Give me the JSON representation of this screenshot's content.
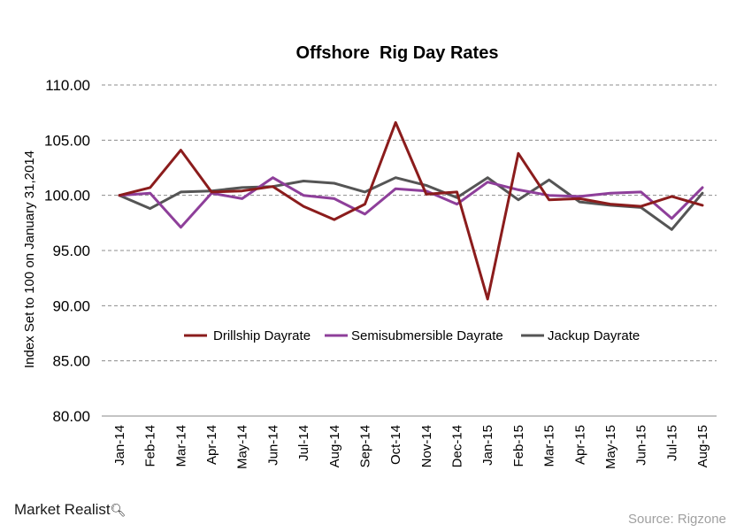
{
  "brand": {
    "name": "Market Realist"
  },
  "source": {
    "text": "Source: Rigzone"
  },
  "chart_data": {
    "type": "line",
    "title": "Offshore  Rig Day Rates",
    "xlabel": "",
    "ylabel": "Index Set to 100 on January 31,2014",
    "ylim": [
      80,
      110
    ],
    "yticks": [
      "80.00",
      "85.00",
      "90.00",
      "95.00",
      "100.00",
      "105.00",
      "110.00"
    ],
    "grid": "horizontal dashed",
    "legend": "center",
    "categories": [
      "Jan-14",
      "Feb-14",
      "Mar-14",
      "Apr-14",
      "May-14",
      "Jun-14",
      "Jul-14",
      "Aug-14",
      "Sep-14",
      "Oct-14",
      "Nov-14",
      "Dec-14",
      "Jan-15",
      "Feb-15",
      "Mar-15",
      "Apr-15",
      "May-15",
      "Jun-15",
      "Jul-15",
      "Aug-15"
    ],
    "series": [
      {
        "name": "Drillship Dayrate",
        "color": "#8b1c1c",
        "values": [
          100.0,
          100.7,
          104.1,
          100.3,
          100.4,
          100.8,
          99.0,
          97.8,
          99.2,
          106.6,
          100.1,
          100.3,
          90.6,
          103.8,
          99.6,
          99.7,
          99.2,
          99.0,
          99.9,
          99.1
        ]
      },
      {
        "name": "Semisubmersible Dayrate",
        "color": "#8e3f9a",
        "values": [
          100.0,
          100.2,
          97.1,
          100.2,
          99.7,
          101.6,
          100.0,
          99.7,
          98.3,
          100.6,
          100.4,
          99.2,
          101.2,
          100.5,
          100.0,
          99.9,
          100.2,
          100.3,
          97.9,
          100.7
        ]
      },
      {
        "name": "Jackup Dayrate",
        "color": "#555555",
        "values": [
          100.0,
          98.8,
          100.3,
          100.4,
          100.7,
          100.8,
          101.3,
          101.1,
          100.3,
          101.6,
          100.9,
          99.8,
          101.6,
          99.6,
          101.4,
          99.4,
          99.1,
          98.9,
          96.9,
          100.2
        ]
      }
    ]
  }
}
